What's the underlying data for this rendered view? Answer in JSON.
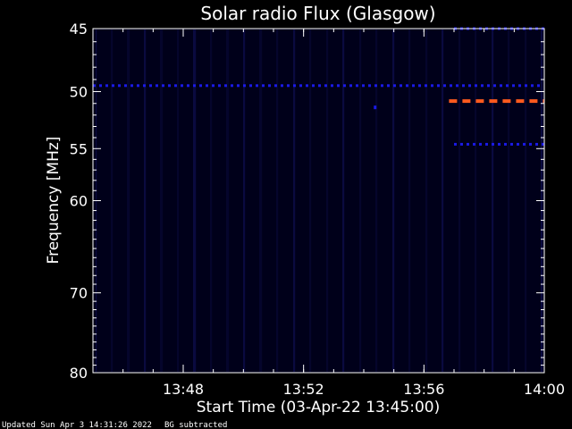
{
  "chart_data": {
    "type": "heatmap",
    "title": "Solar radio Flux (Glasgow)",
    "xlabel": "Start Time (03-Apr-22 13:45:00)",
    "ylabel": "Frequency [MHz]",
    "x_range": [
      "13:45",
      "14:00"
    ],
    "x_ticks": [
      "13:48",
      "13:52",
      "13:56",
      "14:00"
    ],
    "y_range": [
      45,
      80
    ],
    "y_scale": "log",
    "y_ticks": [
      "45",
      "50",
      "55",
      "60",
      "70",
      "80"
    ],
    "background_color": "#00001a",
    "features": [
      {
        "start": "13:45",
        "end": "14:00",
        "frequency": 49.5,
        "intensity": "low",
        "color": "#1a1ae6"
      },
      {
        "start": "13:57",
        "end": "14:00",
        "frequency": 45.0,
        "intensity": "low",
        "color": "#1a1ae6"
      },
      {
        "start": "13:57",
        "end": "14:00",
        "frequency": 54.6,
        "intensity": "low",
        "color": "#1a1ae6"
      },
      {
        "start": "13:56:50",
        "end": "14:00",
        "frequency": 50.8,
        "intensity": "high",
        "color": "#ff5a1e"
      },
      {
        "start": "13:54:20",
        "end": "13:54:25",
        "frequency": 51.3,
        "intensity": "low",
        "color": "#1a1ae6"
      }
    ]
  },
  "footer": {
    "updated": "Updated Sun Apr  3 14:31:26 2022",
    "note": "BG subtracted"
  }
}
